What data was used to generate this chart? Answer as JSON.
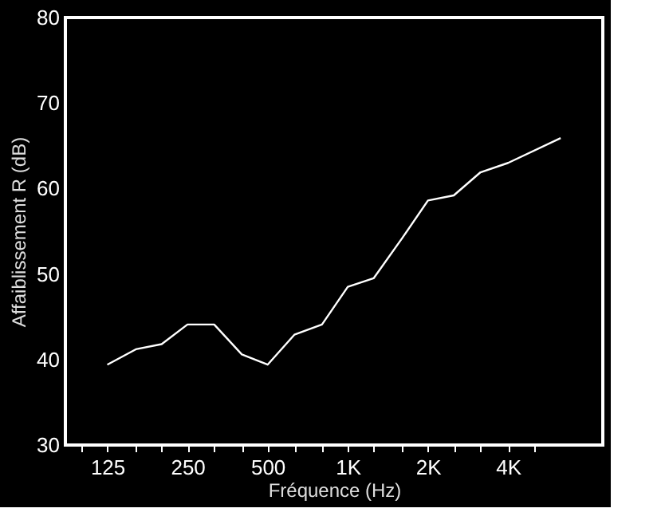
{
  "chart_data": {
    "type": "line",
    "xlabel": "Fréquence (Hz)",
    "ylabel": "Affaiblissement  R  (dB)",
    "x": [
      125,
      160,
      200,
      250,
      315,
      400,
      500,
      630,
      800,
      1000,
      1250,
      1600,
      2000,
      2500,
      3150,
      4000,
      6300
    ],
    "series": [
      {
        "color": "#ffffff",
        "values": [
          39.4,
          41.2,
          41.8,
          44.1,
          44.1,
          40.6,
          39.4,
          42.9,
          44.1,
          48.5,
          49.5,
          54.2,
          58.6,
          59.2,
          61.9,
          63.0,
          65.9
        ]
      }
    ],
    "log": "x",
    "xlim": [
      87,
      9070
    ],
    "ylim": [
      30,
      80
    ],
    "yticks": [
      30,
      40,
      50,
      60,
      70,
      80
    ],
    "xticks": [
      {
        "value": 100,
        "label": null
      },
      125,
      {
        "value": 160,
        "label": null
      },
      {
        "value": 200,
        "label": null
      },
      250,
      {
        "value": 315,
        "label": null
      },
      {
        "value": 400,
        "label": null
      },
      500,
      {
        "value": 630,
        "label": null
      },
      {
        "value": 800,
        "label": null
      },
      {
        "value": 1000,
        "label": "1K"
      },
      {
        "value": 1250,
        "label": null
      },
      {
        "value": 1600,
        "label": null
      },
      {
        "value": 2000,
        "label": "2K"
      },
      {
        "value": 2500,
        "label": null
      },
      {
        "value": 3150,
        "label": null
      },
      {
        "value": 4000,
        "label": "4K"
      },
      {
        "value": 5000,
        "label": null
      }
    ],
    "grid": false,
    "marker": "none",
    "line_style": "solid"
  }
}
